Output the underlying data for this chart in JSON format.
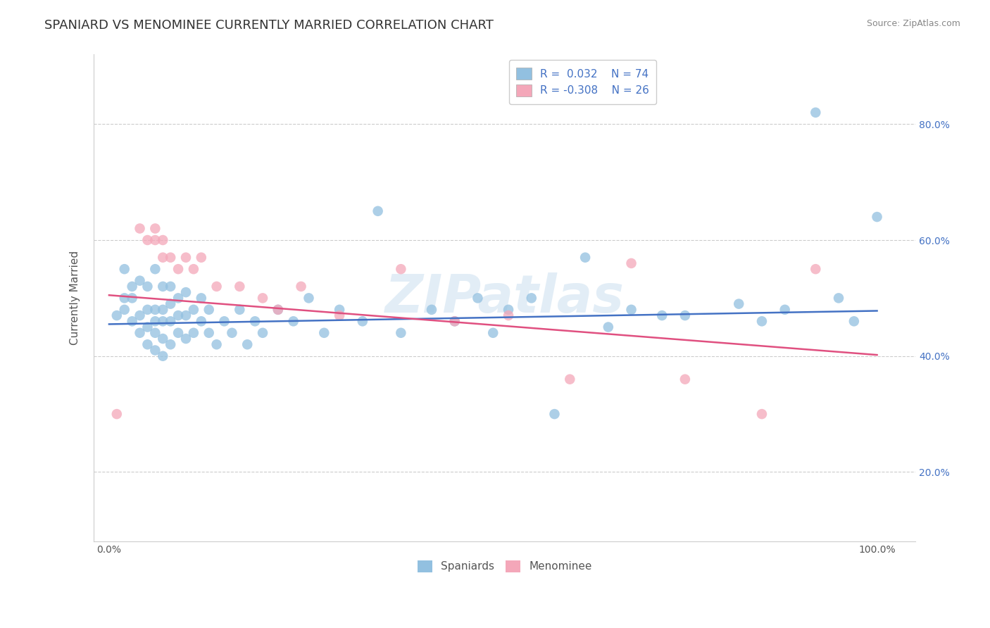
{
  "title": "SPANIARD VS MENOMINEE CURRENTLY MARRIED CORRELATION CHART",
  "source": "Source: ZipAtlas.com",
  "ylabel": "Currently Married",
  "watermark": "ZIPatlas",
  "legend_r_blue": "R =  0.032",
  "legend_n_blue": "N = 74",
  "legend_r_pink": "R = -0.308",
  "legend_n_pink": "N = 26",
  "xlim": [
    -0.02,
    1.05
  ],
  "ylim": [
    0.08,
    0.92
  ],
  "yticks": [
    0.2,
    0.4,
    0.6,
    0.8
  ],
  "ytick_labels": [
    "20.0%",
    "40.0%",
    "60.0%",
    "80.0%"
  ],
  "xticks": [
    0.0,
    1.0
  ],
  "xtick_labels": [
    "0.0%",
    "100.0%"
  ],
  "color_blue": "#92c0e0",
  "color_pink": "#f4a7b9",
  "line_blue": "#4472c4",
  "line_pink": "#e05080",
  "legend_labels": [
    "Spaniards",
    "Menominee"
  ],
  "blue_trend_start": 0.455,
  "blue_trend_end": 0.478,
  "pink_trend_start": 0.505,
  "pink_trend_end": 0.402,
  "grid_color": "#cccccc",
  "background_color": "#ffffff",
  "title_fontsize": 13,
  "axis_label_fontsize": 11,
  "tick_fontsize": 10,
  "legend_fontsize": 11,
  "blue_x": [
    0.01,
    0.02,
    0.02,
    0.02,
    0.03,
    0.03,
    0.03,
    0.04,
    0.04,
    0.04,
    0.05,
    0.05,
    0.05,
    0.05,
    0.06,
    0.06,
    0.06,
    0.06,
    0.06,
    0.07,
    0.07,
    0.07,
    0.07,
    0.07,
    0.08,
    0.08,
    0.08,
    0.08,
    0.09,
    0.09,
    0.09,
    0.1,
    0.1,
    0.1,
    0.11,
    0.11,
    0.12,
    0.12,
    0.13,
    0.13,
    0.14,
    0.15,
    0.16,
    0.17,
    0.18,
    0.19,
    0.2,
    0.22,
    0.24,
    0.26,
    0.28,
    0.3,
    0.33,
    0.35,
    0.38,
    0.42,
    0.45,
    0.48,
    0.5,
    0.52,
    0.55,
    0.58,
    0.62,
    0.65,
    0.68,
    0.72,
    0.75,
    0.82,
    0.85,
    0.88,
    0.92,
    0.95,
    0.97,
    1.0
  ],
  "blue_y": [
    0.47,
    0.48,
    0.5,
    0.55,
    0.46,
    0.5,
    0.52,
    0.44,
    0.47,
    0.53,
    0.42,
    0.45,
    0.48,
    0.52,
    0.41,
    0.44,
    0.46,
    0.48,
    0.55,
    0.4,
    0.43,
    0.46,
    0.48,
    0.52,
    0.42,
    0.46,
    0.49,
    0.52,
    0.44,
    0.47,
    0.5,
    0.43,
    0.47,
    0.51,
    0.44,
    0.48,
    0.46,
    0.5,
    0.44,
    0.48,
    0.42,
    0.46,
    0.44,
    0.48,
    0.42,
    0.46,
    0.44,
    0.48,
    0.46,
    0.5,
    0.44,
    0.48,
    0.46,
    0.65,
    0.44,
    0.48,
    0.46,
    0.5,
    0.44,
    0.48,
    0.5,
    0.3,
    0.57,
    0.45,
    0.48,
    0.47,
    0.47,
    0.49,
    0.46,
    0.48,
    0.82,
    0.5,
    0.46,
    0.64
  ],
  "pink_x": [
    0.01,
    0.04,
    0.05,
    0.06,
    0.06,
    0.07,
    0.07,
    0.08,
    0.09,
    0.1,
    0.11,
    0.12,
    0.14,
    0.17,
    0.2,
    0.22,
    0.25,
    0.3,
    0.38,
    0.45,
    0.52,
    0.6,
    0.68,
    0.75,
    0.85,
    0.92
  ],
  "pink_y": [
    0.3,
    0.62,
    0.6,
    0.6,
    0.62,
    0.57,
    0.6,
    0.57,
    0.55,
    0.57,
    0.55,
    0.57,
    0.52,
    0.52,
    0.5,
    0.48,
    0.52,
    0.47,
    0.55,
    0.46,
    0.47,
    0.36,
    0.56,
    0.36,
    0.3,
    0.55
  ]
}
